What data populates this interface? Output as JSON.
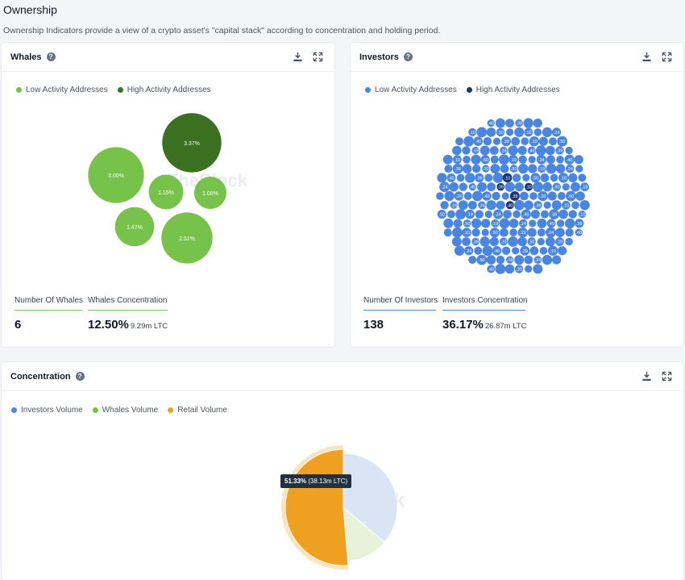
{
  "page": {
    "title": "Ownership",
    "subtitle": "Ownership Indicators provide a view of a crypto asset's \"capital stack\" according to concentration and holding period."
  },
  "whales": {
    "title": "Whales",
    "help_icon": "question-circle-icon",
    "download_icon": "download-icon",
    "expand_icon": "expand-icon",
    "legend": [
      {
        "label": "Low Activity Addresses",
        "color": "#76c24a"
      },
      {
        "label": "High Activity Addresses",
        "color": "#3a7020"
      }
    ],
    "bubbles": [
      {
        "label": "3.37%",
        "value": 3.37,
        "activity": "high"
      },
      {
        "label": "3.00%",
        "value": 3.0,
        "activity": "low"
      },
      {
        "label": "1.15%",
        "value": 1.15,
        "activity": "low"
      },
      {
        "label": "1.00%",
        "value": 1.0,
        "activity": "low"
      },
      {
        "label": "1.47%",
        "value": 1.47,
        "activity": "low"
      },
      {
        "label": "2.51%",
        "value": 2.51,
        "activity": "low"
      }
    ],
    "count_label": "Number Of Whales",
    "count_value": "6",
    "concentration_label": "Whales Concentration",
    "concentration_value": "12.50%",
    "concentration_unit": "9.29m LTC",
    "accent": "#76c24a"
  },
  "investors": {
    "title": "Investors",
    "help_icon": "question-circle-icon",
    "download_icon": "download-icon",
    "expand_icon": "expand-icon",
    "legend": [
      {
        "label": "Low Activity Addresses",
        "color": "#4a86e0"
      },
      {
        "label": "High Activity Addresses",
        "color": "#1d3575"
      }
    ],
    "count_label": "Number Of Investors",
    "count_value": "138",
    "concentration_label": "Investors Concentration",
    "concentration_value": "36.17%",
    "concentration_unit": "26.87m LTC",
    "accent": "#4a86e0"
  },
  "concentration": {
    "title": "Concentration",
    "help_icon": "question-circle-icon",
    "download_icon": "download-icon",
    "expand_icon": "expand-icon",
    "legend": [
      {
        "label": "Investors Volume",
        "color": "#4a86e0"
      },
      {
        "label": "Whales Volume",
        "color": "#76c24a"
      },
      {
        "label": "Retail Volume",
        "color": "#f0a020"
      }
    ],
    "tooltip_value": "51.33%",
    "tooltip_detail": "(38.13m LTC)"
  },
  "watermark": "TheBlock",
  "chart_data": {
    "type": "pie",
    "title": "Concentration",
    "categories": [
      "Investors Volume",
      "Whales Volume",
      "Retail Volume"
    ],
    "values": [
      36.17,
      12.5,
      51.33
    ],
    "colors": [
      "#4a86e0",
      "#76c24a",
      "#f0a020"
    ],
    "highlighted": "Retail Volume"
  }
}
